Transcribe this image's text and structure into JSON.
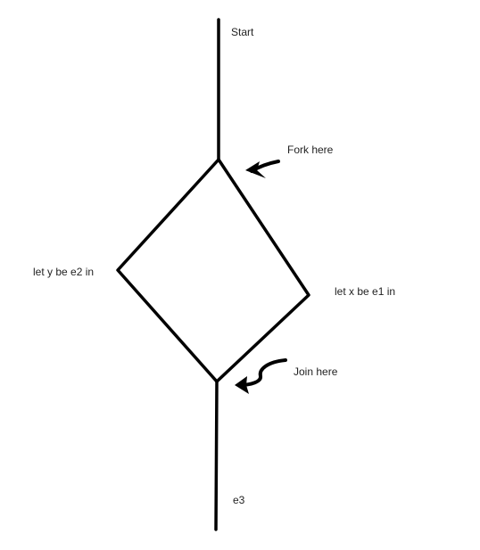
{
  "diagram": {
    "labels": {
      "start": "Start",
      "fork": "Fork here",
      "left_branch": "let y be e2 in",
      "right_branch": "let x be e1 in",
      "join": "Join here",
      "end": "e3"
    },
    "colors": {
      "background": "#ffffff",
      "stroke": "#000000",
      "text": "#222222"
    }
  }
}
